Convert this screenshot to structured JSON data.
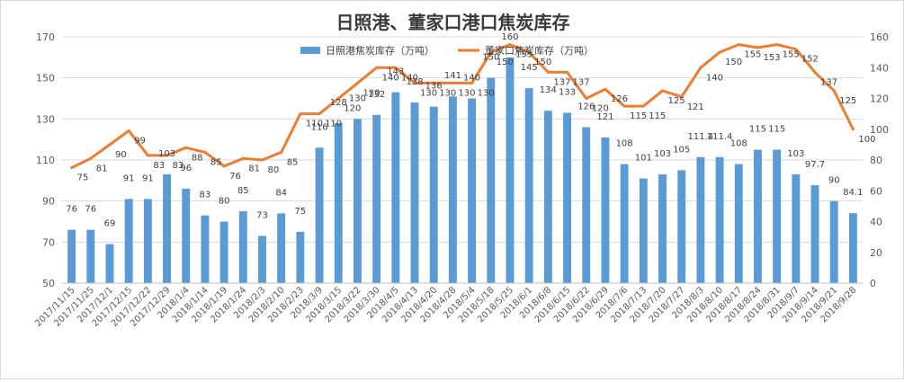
{
  "chart_data": {
    "type": "bar+line",
    "title": "日照港、董家口港口焦炭库存",
    "categories": [
      "2017/11/15",
      "2017/11/25",
      "2017/12/1",
      "2017/12/15",
      "2017/12/22",
      "2017/12/29",
      "2018/1/4",
      "2018/1/14",
      "2018/1/19",
      "2018/1/24",
      "2018/2/3",
      "2018/2/10",
      "2018/2/23",
      "2018/3/9",
      "2018/3/15",
      "2018/3/22",
      "2018/3/30",
      "2018/4/5",
      "2018/4/13",
      "2018/4/20",
      "2018/4/28",
      "2018/5/4",
      "2018/5/18",
      "2018/5/25",
      "2018/6/1",
      "2018/6/8",
      "2018/6/15",
      "2018/6/22",
      "2018/6/29",
      "2018/7/6",
      "2018/7/13",
      "2018/7/20",
      "2018/7/27",
      "2018/8/3",
      "2018/8/10",
      "2018/8/17",
      "2018/8/24",
      "2018/8/31",
      "2018/9/7",
      "2018/9/14",
      "2018/9/21",
      "2018/9/28"
    ],
    "series": [
      {
        "name": "日照港焦炭库存（万吨）",
        "type": "bar",
        "axis": "left",
        "color": "#5b9bd5",
        "values": [
          76,
          76,
          69,
          91,
          91,
          103,
          96,
          83,
          80,
          85,
          73,
          84,
          75,
          116,
          128,
          130,
          132,
          143,
          138,
          136,
          141,
          140,
          150,
          160,
          145,
          134,
          133,
          126,
          121,
          108,
          101,
          103,
          105,
          111.4,
          111.4,
          108,
          115,
          115,
          103,
          97.7,
          90,
          84.1
        ],
        "labels": [
          "76",
          "76",
          "69",
          "91",
          "91",
          "103",
          "96",
          "83",
          "80",
          "85",
          "73",
          "84",
          "75",
          "116",
          "128",
          "130",
          "132",
          "143",
          "138",
          "136",
          "141",
          "140",
          "150",
          "160",
          "145",
          "134",
          "133",
          "126",
          "121",
          "108",
          "101",
          "103",
          "105",
          "111.4",
          "111.4",
          "108",
          "115",
          "115",
          "103",
          "97.7",
          "90",
          "84.1"
        ]
      },
      {
        "name": "董家口焦炭库存（万吨）",
        "type": "line",
        "axis": "right",
        "color": "#ed7d31",
        "values": [
          75,
          81,
          90,
          99,
          83,
          83,
          88,
          85,
          76,
          81,
          80,
          85,
          110,
          110,
          120,
          130,
          140,
          140,
          130,
          130,
          130,
          130,
          150,
          155,
          150,
          137,
          137,
          120,
          126,
          115,
          115,
          125,
          121,
          140,
          150,
          155,
          153,
          155,
          152,
          137,
          125,
          100
        ],
        "labels": [
          "75",
          "81",
          "90",
          "99",
          "83",
          "83",
          "88",
          "85",
          "76",
          "81",
          "80",
          "85",
          "110",
          "110",
          "120",
          "130",
          "140",
          "140",
          "130",
          "130",
          "130",
          "130",
          "150",
          "155",
          "150",
          "137",
          "137",
          "120",
          "126",
          "115",
          "115",
          "125",
          "121",
          "140",
          "150",
          "155",
          "153",
          "155",
          "152",
          "137",
          "125",
          "100"
        ]
      }
    ],
    "y_left": {
      "min": 50,
      "max": 170,
      "ticks": [
        "50",
        "70",
        "90",
        "110",
        "130",
        "150",
        "170"
      ]
    },
    "y_right": {
      "min": 0,
      "max": 160,
      "ticks": [
        "0",
        "20",
        "40",
        "60",
        "80",
        "100",
        "120",
        "140",
        "160"
      ]
    },
    "legend_position": "top-center",
    "grid": true
  }
}
